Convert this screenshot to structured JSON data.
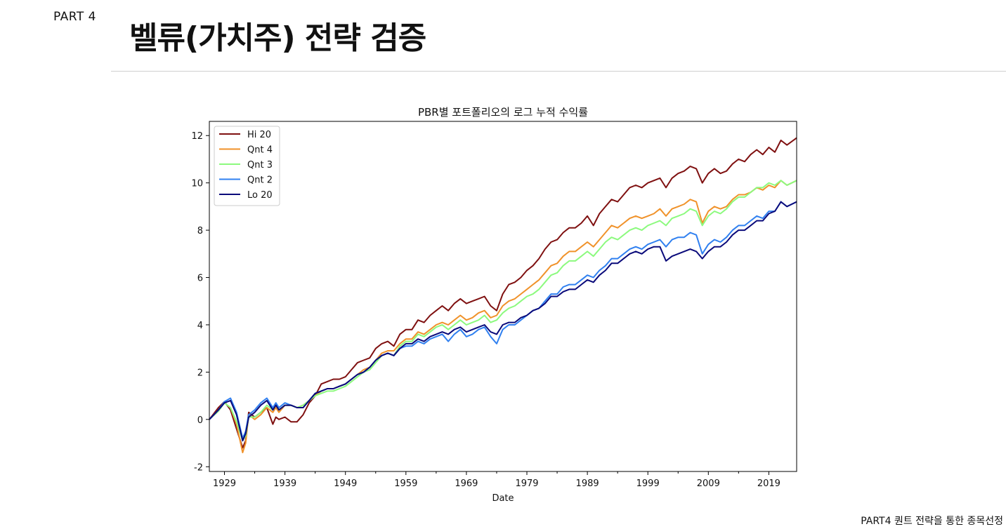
{
  "header": {
    "part_label": "PART 4",
    "title": "벨류(가치주) 전략 검증"
  },
  "footer": {
    "text": "PART4 퀀트 전략을 통한 종목선정"
  },
  "chart_data": {
    "type": "line",
    "title": "PBR별 포트폴리오의 로그 누적 수익률",
    "xlabel": "Date",
    "ylabel": "",
    "xlim": [
      1926.5,
      2023.6
    ],
    "ylim": [
      -2.2,
      12.6
    ],
    "xticks": [
      1929,
      1939,
      1949,
      1959,
      1969,
      1979,
      1989,
      1999,
      2009,
      2019
    ],
    "yticks": [
      -2,
      0,
      2,
      4,
      6,
      8,
      10,
      12
    ],
    "grid": false,
    "legend_position": "upper-left",
    "x": [
      1926.5,
      1928,
      1929,
      1930,
      1931,
      1932,
      1932.5,
      1933,
      1934,
      1935,
      1936,
      1937,
      1937.5,
      1938,
      1939,
      1940,
      1941,
      1942,
      1943,
      1944,
      1945,
      1946,
      1947,
      1948,
      1949,
      1950,
      1951,
      1952,
      1953,
      1954,
      1955,
      1956,
      1957,
      1958,
      1959,
      1960,
      1961,
      1962,
      1963,
      1964,
      1965,
      1966,
      1967,
      1968,
      1969,
      1970,
      1971,
      1972,
      1973,
      1974,
      1975,
      1976,
      1977,
      1978,
      1979,
      1980,
      1981,
      1982,
      1983,
      1984,
      1985,
      1986,
      1987,
      1988,
      1989,
      1990,
      1991,
      1992,
      1993,
      1994,
      1995,
      1996,
      1997,
      1998,
      1999,
      2000,
      2001,
      2002,
      2003,
      2004,
      2005,
      2006,
      2007,
      2008,
      2009,
      2010,
      2011,
      2012,
      2013,
      2014,
      2015,
      2016,
      2017,
      2018,
      2019,
      2020,
      2021,
      2022,
      2023.6
    ],
    "series": [
      {
        "name": "Hi 20",
        "color": "#7f1010",
        "values": [
          0,
          0.5,
          0.75,
          0.4,
          -0.4,
          -1.2,
          -0.9,
          0.3,
          0.1,
          0.3,
          0.5,
          -0.2,
          0.1,
          0,
          0.1,
          -0.1,
          -0.1,
          0.2,
          0.7,
          1.0,
          1.5,
          1.6,
          1.7,
          1.7,
          1.8,
          2.1,
          2.4,
          2.5,
          2.6,
          3.0,
          3.2,
          3.3,
          3.1,
          3.6,
          3.8,
          3.8,
          4.2,
          4.1,
          4.4,
          4.6,
          4.8,
          4.6,
          4.9,
          5.1,
          4.9,
          5.0,
          5.1,
          5.2,
          4.8,
          4.6,
          5.3,
          5.7,
          5.8,
          6.0,
          6.3,
          6.5,
          6.8,
          7.2,
          7.5,
          7.6,
          7.9,
          8.1,
          8.1,
          8.3,
          8.6,
          8.2,
          8.7,
          9.0,
          9.3,
          9.2,
          9.5,
          9.8,
          9.9,
          9.8,
          10.0,
          10.1,
          10.2,
          9.8,
          10.2,
          10.4,
          10.5,
          10.7,
          10.6,
          10.0,
          10.4,
          10.6,
          10.4,
          10.5,
          10.8,
          11.0,
          10.9,
          11.2,
          11.4,
          11.2,
          11.5,
          11.3,
          11.8,
          11.6,
          11.9
        ]
      },
      {
        "name": "Qnt 4",
        "color": "#f0922a",
        "values": [
          0,
          0.4,
          0.7,
          0.5,
          -0.2,
          -1.4,
          -1.0,
          0.2,
          0,
          0.2,
          0.5,
          0.3,
          0.5,
          0.3,
          0.6,
          0.6,
          0.5,
          0.6,
          0.8,
          1.0,
          1.2,
          1.3,
          1.3,
          1.4,
          1.5,
          1.7,
          1.9,
          2.1,
          2.2,
          2.5,
          2.8,
          2.9,
          2.9,
          3.2,
          3.4,
          3.4,
          3.7,
          3.6,
          3.8,
          4.0,
          4.1,
          4.0,
          4.2,
          4.4,
          4.2,
          4.3,
          4.5,
          4.6,
          4.3,
          4.4,
          4.8,
          5.0,
          5.1,
          5.3,
          5.5,
          5.7,
          5.9,
          6.2,
          6.5,
          6.6,
          6.9,
          7.1,
          7.1,
          7.3,
          7.5,
          7.3,
          7.6,
          7.9,
          8.2,
          8.1,
          8.3,
          8.5,
          8.6,
          8.5,
          8.6,
          8.7,
          8.9,
          8.6,
          8.9,
          9.0,
          9.1,
          9.3,
          9.2,
          8.3,
          8.8,
          9.0,
          8.9,
          9.0,
          9.3,
          9.5,
          9.5,
          9.6,
          9.8,
          9.7,
          9.9,
          9.8,
          10.1,
          9.9,
          10.1
        ]
      },
      {
        "name": "Qnt 3",
        "color": "#8cfa7e",
        "values": [
          0,
          0.35,
          0.7,
          0.5,
          -0.1,
          -0.9,
          -0.7,
          0.1,
          0.1,
          0.3,
          0.6,
          0.4,
          0.6,
          0.4,
          0.6,
          0.6,
          0.5,
          0.6,
          0.8,
          1.0,
          1.1,
          1.2,
          1.2,
          1.3,
          1.4,
          1.6,
          1.8,
          2.0,
          2.1,
          2.4,
          2.7,
          2.8,
          2.7,
          3.1,
          3.3,
          3.3,
          3.6,
          3.5,
          3.7,
          3.9,
          4.0,
          3.8,
          4.0,
          4.2,
          4.0,
          4.1,
          4.2,
          4.4,
          4.1,
          4.2,
          4.5,
          4.7,
          4.8,
          5.0,
          5.2,
          5.3,
          5.5,
          5.8,
          6.1,
          6.2,
          6.5,
          6.7,
          6.7,
          6.9,
          7.1,
          6.9,
          7.2,
          7.5,
          7.7,
          7.6,
          7.8,
          8.0,
          8.1,
          8.0,
          8.2,
          8.3,
          8.4,
          8.2,
          8.5,
          8.6,
          8.7,
          8.9,
          8.8,
          8.2,
          8.6,
          8.8,
          8.7,
          8.9,
          9.2,
          9.4,
          9.4,
          9.6,
          9.8,
          9.8,
          10.0,
          9.9,
          10.1,
          9.9,
          10.1
        ]
      },
      {
        "name": "Qnt 2",
        "color": "#3080f0",
        "values": [
          0,
          0.4,
          0.75,
          0.9,
          0.3,
          -0.8,
          -0.5,
          0.2,
          0.4,
          0.7,
          0.9,
          0.5,
          0.7,
          0.5,
          0.7,
          0.6,
          0.5,
          0.5,
          0.8,
          1.1,
          1.2,
          1.3,
          1.3,
          1.4,
          1.5,
          1.7,
          1.9,
          2.0,
          2.2,
          2.5,
          2.7,
          2.8,
          2.7,
          3.0,
          3.1,
          3.1,
          3.3,
          3.2,
          3.4,
          3.5,
          3.6,
          3.3,
          3.6,
          3.8,
          3.5,
          3.6,
          3.8,
          3.9,
          3.5,
          3.2,
          3.8,
          4.0,
          4.0,
          4.2,
          4.4,
          4.6,
          4.7,
          5.0,
          5.3,
          5.3,
          5.6,
          5.7,
          5.7,
          5.9,
          6.1,
          6.0,
          6.3,
          6.5,
          6.8,
          6.8,
          7.0,
          7.2,
          7.3,
          7.2,
          7.4,
          7.5,
          7.6,
          7.3,
          7.6,
          7.7,
          7.7,
          7.9,
          7.8,
          7.0,
          7.4,
          7.6,
          7.5,
          7.7,
          8.0,
          8.2,
          8.2,
          8.4,
          8.6,
          8.5,
          8.8,
          8.8,
          9.2,
          9.0,
          9.2
        ]
      },
      {
        "name": "Lo 20",
        "color": "#0a0a7a",
        "values": [
          0,
          0.4,
          0.7,
          0.8,
          0.2,
          -0.9,
          -0.6,
          0.1,
          0.3,
          0.6,
          0.8,
          0.4,
          0.6,
          0.4,
          0.6,
          0.6,
          0.5,
          0.5,
          0.8,
          1.1,
          1.2,
          1.3,
          1.3,
          1.4,
          1.5,
          1.7,
          1.9,
          2.0,
          2.2,
          2.5,
          2.7,
          2.8,
          2.7,
          3.0,
          3.2,
          3.2,
          3.4,
          3.3,
          3.5,
          3.6,
          3.7,
          3.6,
          3.8,
          3.9,
          3.7,
          3.8,
          3.9,
          4.0,
          3.7,
          3.6,
          4.0,
          4.1,
          4.1,
          4.3,
          4.4,
          4.6,
          4.7,
          4.9,
          5.2,
          5.2,
          5.4,
          5.5,
          5.5,
          5.7,
          5.9,
          5.8,
          6.1,
          6.3,
          6.6,
          6.6,
          6.8,
          7.0,
          7.1,
          7.0,
          7.2,
          7.3,
          7.3,
          6.7,
          6.9,
          7.0,
          7.1,
          7.2,
          7.1,
          6.8,
          7.1,
          7.3,
          7.3,
          7.5,
          7.8,
          8.0,
          8.0,
          8.2,
          8.4,
          8.4,
          8.7,
          8.8,
          9.2,
          9.0,
          9.2
        ]
      }
    ]
  }
}
